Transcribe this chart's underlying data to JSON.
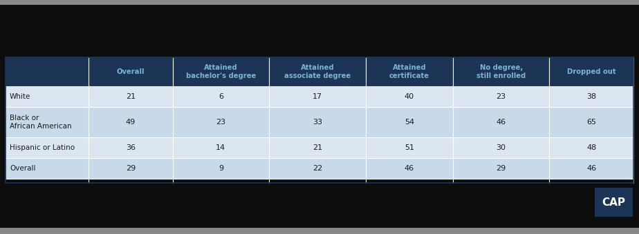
{
  "dark_bar_color": "#0d0d0d",
  "header_bg_color": "#1c3557",
  "header_text_color": "#7ab3d4",
  "row_bg_even": "#dce6f0",
  "row_bg_odd": "#c8daea",
  "data_text_color": "#1a1a1a",
  "row_label_color": "#1a1a1a",
  "col_headers": [
    "Overall",
    "Attained\nbachelor's degree",
    "Attained\nassociate degree",
    "Attained\ncertificate",
    "No degree,\nstill enrolled",
    "Dropped out"
  ],
  "row_labels": [
    "White",
    "Black or\nAfrican American",
    "Hispanic or Latino",
    "Overall"
  ],
  "data": [
    [
      21,
      6,
      17,
      40,
      23,
      38
    ],
    [
      49,
      23,
      33,
      54,
      46,
      65
    ],
    [
      36,
      14,
      21,
      51,
      30,
      48
    ],
    [
      29,
      9,
      22,
      46,
      29,
      46
    ]
  ],
  "top_stripe_color": "#888888",
  "bottom_stripe_color": "#888888",
  "cap_logo_bg": "#1c3557",
  "cap_logo_text": "CAP",
  "border_color": "#1c3557",
  "inner_line_color": "#ffffff",
  "fig_bg_color": "#0d0d0d",
  "table_outer_bg": "#e0e0e0"
}
